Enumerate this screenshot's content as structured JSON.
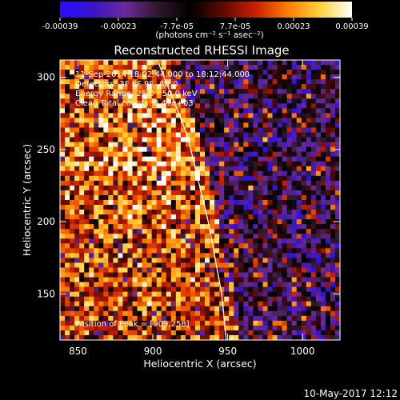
{
  "colorbar": {
    "tick_labels": [
      "-0.00039",
      "-0.00023",
      "-7.7e-05",
      "7.7e-05",
      "0.00023",
      "0.00039"
    ],
    "unit_label": "(photons cm⁻² s⁻¹ asec⁻²)",
    "range": [
      -0.00039,
      0.00039
    ],
    "stops": [
      "#2a0cff",
      "#3a14c8",
      "#6a2a9a",
      "#30182e",
      "#000000",
      "#5a0a00",
      "#c81e00",
      "#ff7a00",
      "#ffd23a",
      "#ffffff"
    ]
  },
  "annotations": {
    "time_range": "11-Sep-2014 18:02:44.000 to 18:12:44.000",
    "detectors": "Detectors: 3F 6F 9F, Att 0",
    "energy": "Energy Range: 25.0 - 50.0 keV",
    "method": "Clean    Total counts: 8.41e+03",
    "peak": "Position of Peak = [909,258]"
  },
  "footer": {
    "date": "10-May-2017 12:12"
  },
  "chart_data": {
    "type": "heatmap",
    "title": "Reconstructed RHESSI Image",
    "xlabel": "Heliocentric X (arcsec)",
    "ylabel": "Heliocentric Y (arcsec)",
    "xlim": [
      838,
      1025
    ],
    "ylim": [
      118,
      312
    ],
    "x_ticks": [
      850,
      900,
      950,
      1000
    ],
    "y_ticks": [
      150,
      200,
      250,
      300
    ],
    "limb_line": [
      [
        903,
        312
      ],
      [
        923,
        260
      ],
      [
        937,
        200
      ],
      [
        946,
        150
      ],
      [
        949,
        118
      ]
    ],
    "peak_position": [
      909,
      258
    ],
    "grid": false,
    "colormap": "blue-black-red-yellow-white"
  }
}
